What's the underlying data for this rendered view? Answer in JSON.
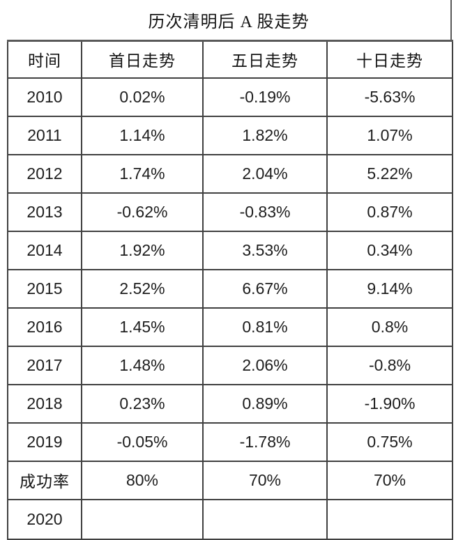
{
  "title": "历次清明后 A 股走势",
  "table": {
    "headers": [
      "时间",
      "首日走势",
      "五日走势",
      "十日走势"
    ],
    "rows": [
      [
        "2010",
        "0.02%",
        "-0.19%",
        "-5.63%"
      ],
      [
        "2011",
        "1.14%",
        "1.82%",
        "1.07%"
      ],
      [
        "2012",
        "1.74%",
        "2.04%",
        "5.22%"
      ],
      [
        "2013",
        "-0.62%",
        "-0.83%",
        "0.87%"
      ],
      [
        "2014",
        "1.92%",
        "3.53%",
        "0.34%"
      ],
      [
        "2015",
        "2.52%",
        "6.67%",
        "9.14%"
      ],
      [
        "2016",
        "1.45%",
        "0.81%",
        "0.8%"
      ],
      [
        "2017",
        "1.48%",
        "2.06%",
        "-0.8%"
      ],
      [
        "2018",
        "0.23%",
        "0.89%",
        "-1.90%"
      ],
      [
        "2019",
        "-0.05%",
        "-1.78%",
        "0.75%"
      ],
      [
        "成功率",
        "80%",
        "70%",
        "70%"
      ],
      [
        "2020",
        "",
        "",
        ""
      ]
    ]
  },
  "chart_data": {
    "type": "table",
    "title": "历次清明后 A 股走势",
    "columns": [
      "时间",
      "首日走势",
      "五日走势",
      "十日走势"
    ],
    "rows": [
      [
        "2010",
        "0.02%",
        "-0.19%",
        "-5.63%"
      ],
      [
        "2011",
        "1.14%",
        "1.82%",
        "1.07%"
      ],
      [
        "2012",
        "1.74%",
        "2.04%",
        "5.22%"
      ],
      [
        "2013",
        "-0.62%",
        "-0.83%",
        "0.87%"
      ],
      [
        "2014",
        "1.92%",
        "3.53%",
        "0.34%"
      ],
      [
        "2015",
        "2.52%",
        "6.67%",
        "9.14%"
      ],
      [
        "2016",
        "1.45%",
        "0.81%",
        "0.8%"
      ],
      [
        "2017",
        "1.48%",
        "2.06%",
        "-0.8%"
      ],
      [
        "2018",
        "0.23%",
        "0.89%",
        "-1.90%"
      ],
      [
        "2019",
        "-0.05%",
        "-1.78%",
        "0.75%"
      ],
      [
        "成功率",
        "80%",
        "70%",
        "70%"
      ],
      [
        "2020",
        "",
        "",
        ""
      ]
    ],
    "notes": {
      "border_color": "#404040",
      "title_rule_color": "#595959",
      "text_color": "#1d1d1d"
    }
  }
}
